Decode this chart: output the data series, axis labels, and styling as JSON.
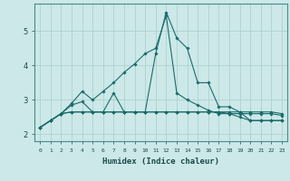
{
  "xlabel": "Humidex (Indice chaleur)",
  "ylabel": "",
  "background_color": "#cce8e8",
  "grid_color": "#aacccc",
  "line_color": "#1a6b6b",
  "x": [
    0,
    1,
    2,
    3,
    4,
    5,
    6,
    7,
    8,
    9,
    10,
    11,
    12,
    13,
    14,
    15,
    16,
    17,
    18,
    19,
    20,
    21,
    22,
    23
  ],
  "series": [
    [
      2.2,
      2.4,
      2.6,
      2.85,
      2.95,
      2.65,
      2.65,
      3.2,
      2.65,
      2.65,
      2.65,
      4.35,
      5.55,
      4.8,
      4.5,
      3.5,
      3.5,
      2.8,
      2.8,
      2.65,
      2.4,
      2.4,
      2.4,
      2.4
    ],
    [
      2.2,
      2.4,
      2.6,
      2.9,
      3.25,
      3.0,
      3.25,
      3.5,
      3.8,
      4.05,
      4.35,
      4.5,
      5.45,
      3.2,
      3.0,
      2.85,
      2.7,
      2.6,
      2.6,
      2.6,
      2.6,
      2.6,
      2.6,
      2.55
    ],
    [
      2.2,
      2.4,
      2.6,
      2.65,
      2.65,
      2.65,
      2.65,
      2.65,
      2.65,
      2.65,
      2.65,
      2.65,
      2.65,
      2.65,
      2.65,
      2.65,
      2.65,
      2.65,
      2.65,
      2.65,
      2.65,
      2.65,
      2.65,
      2.6
    ],
    [
      2.2,
      2.4,
      2.6,
      2.65,
      2.65,
      2.65,
      2.65,
      2.65,
      2.65,
      2.65,
      2.65,
      2.65,
      2.65,
      2.65,
      2.65,
      2.65,
      2.65,
      2.65,
      2.6,
      2.5,
      2.4,
      2.4,
      2.4,
      2.4
    ]
  ],
  "ylim": [
    1.8,
    5.8
  ],
  "yticks": [
    2,
    3,
    4,
    5
  ],
  "xtick_labels": [
    "0",
    "1",
    "2",
    "3",
    "4",
    "5",
    "6",
    "7",
    "8",
    "9",
    "10",
    "11",
    "12",
    "13",
    "14",
    "15",
    "16",
    "17",
    "18",
    "19",
    "20",
    "21",
    "22",
    "23"
  ],
  "marker": "D",
  "marker_size": 1.8,
  "linewidth": 0.8
}
